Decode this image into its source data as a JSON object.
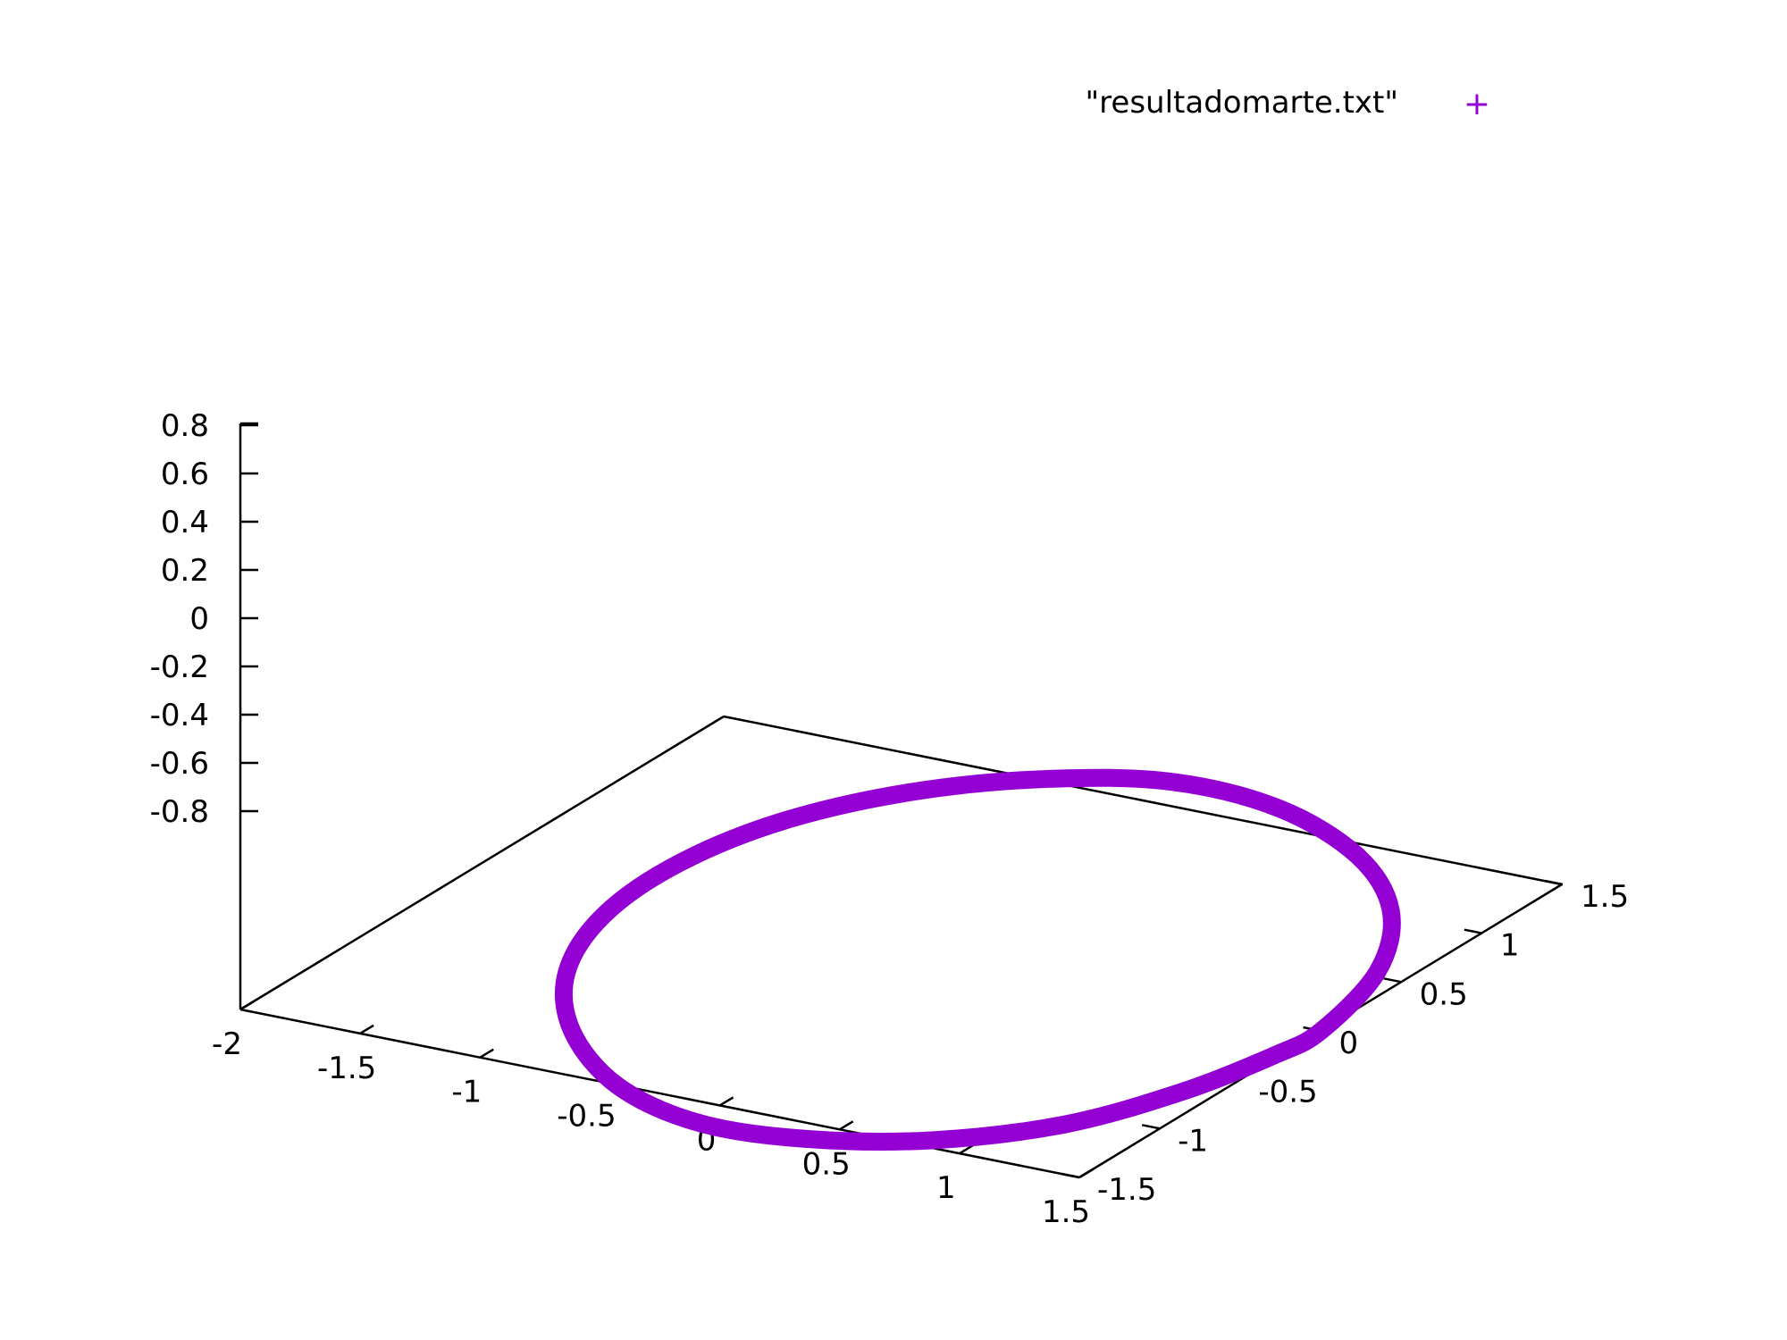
{
  "chart_data": {
    "type": "scatter",
    "plot_type": "3d-scatter",
    "title": "",
    "xlabel": "",
    "ylabel": "",
    "zlabel": "",
    "xlim": [
      -2,
      1.5
    ],
    "ylim": [
      -1.5,
      1.5
    ],
    "zlim": [
      -0.8,
      0.8
    ],
    "x_ticks": [
      "-2",
      "-1.5",
      "-1",
      "-0.5",
      "0",
      "0.5",
      "1",
      "1.5"
    ],
    "y_ticks": [
      "-1.5",
      "-1",
      "-0.5",
      "0",
      "0.5",
      "1",
      "1.5"
    ],
    "z_ticks": [
      "0.8",
      "0.6",
      "0.4",
      "0.2",
      "0",
      "-0.2",
      "-0.4",
      "-0.6",
      "-0.8"
    ],
    "grid": false,
    "legend_position": "top-right",
    "series": [
      {
        "name": "\"resultadomarte.txt\"",
        "marker": "+",
        "color": "#9400d3",
        "points_xyz": [
          [
            1.5,
            0.0,
            0.0
          ],
          [
            1.42,
            0.47,
            0.01
          ],
          [
            1.2,
            0.88,
            0.02
          ],
          [
            0.86,
            1.18,
            0.03
          ],
          [
            0.42,
            1.35,
            0.04
          ],
          [
            -0.06,
            1.39,
            0.04
          ],
          [
            -0.52,
            1.29,
            0.03
          ],
          [
            -0.92,
            1.06,
            0.02
          ],
          [
            -1.22,
            0.72,
            0.01
          ],
          [
            -1.38,
            0.31,
            0.0
          ],
          [
            -1.4,
            -0.13,
            -0.01
          ],
          [
            -1.27,
            -0.56,
            -0.02
          ],
          [
            -1.0,
            -0.93,
            -0.03
          ],
          [
            -0.62,
            -1.21,
            -0.04
          ],
          [
            -0.17,
            -1.37,
            -0.04
          ],
          [
            0.3,
            -1.4,
            -0.03
          ],
          [
            0.75,
            -1.29,
            -0.02
          ],
          [
            1.13,
            -1.04,
            -0.01
          ],
          [
            1.38,
            -0.68,
            0.0
          ],
          [
            1.48,
            -0.26,
            0.0
          ]
        ]
      }
    ]
  }
}
